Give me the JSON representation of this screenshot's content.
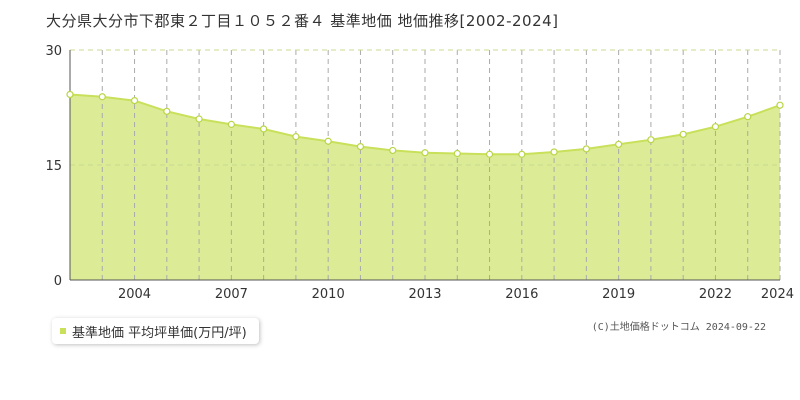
{
  "title": "大分県大分市下郡東２丁目１０５２番４ 基準地価 地価推移[2002-2024]",
  "legend_label": "基準地価 平均坪単価(万円/坪)",
  "copyright": "(C)土地価格ドットコム 2024-09-22",
  "colors": {
    "fill": "#dcec96",
    "line": "#c8e05a",
    "marker_fill": "#ffffff",
    "marker_stroke": "#b8d646",
    "grid_dashed": "#aaaaaa",
    "grid_h": "#c8d890",
    "axis_text": "#333333"
  },
  "chart_data": {
    "type": "area",
    "x": [
      2002,
      2003,
      2004,
      2005,
      2006,
      2007,
      2008,
      2009,
      2010,
      2011,
      2012,
      2013,
      2014,
      2015,
      2016,
      2017,
      2018,
      2019,
      2020,
      2021,
      2022,
      2023,
      2024
    ],
    "series": [
      {
        "name": "基準地価 平均坪単価(万円/坪)",
        "values": [
          24.2,
          23.9,
          23.4,
          22.0,
          21.0,
          20.3,
          19.7,
          18.7,
          18.1,
          17.4,
          16.9,
          16.6,
          16.5,
          16.4,
          16.4,
          16.7,
          17.1,
          17.7,
          18.3,
          19.0,
          20.0,
          21.3,
          22.8
        ]
      }
    ],
    "x_tick_labels": [
      "2004",
      "2007",
      "2010",
      "2013",
      "2016",
      "2019",
      "2022",
      "2024"
    ],
    "y_ticks": [
      0,
      15,
      30
    ],
    "ylim": [
      0,
      30
    ],
    "xlim": [
      2002,
      2024
    ],
    "grid": true,
    "legend_position": "bottom-left"
  }
}
